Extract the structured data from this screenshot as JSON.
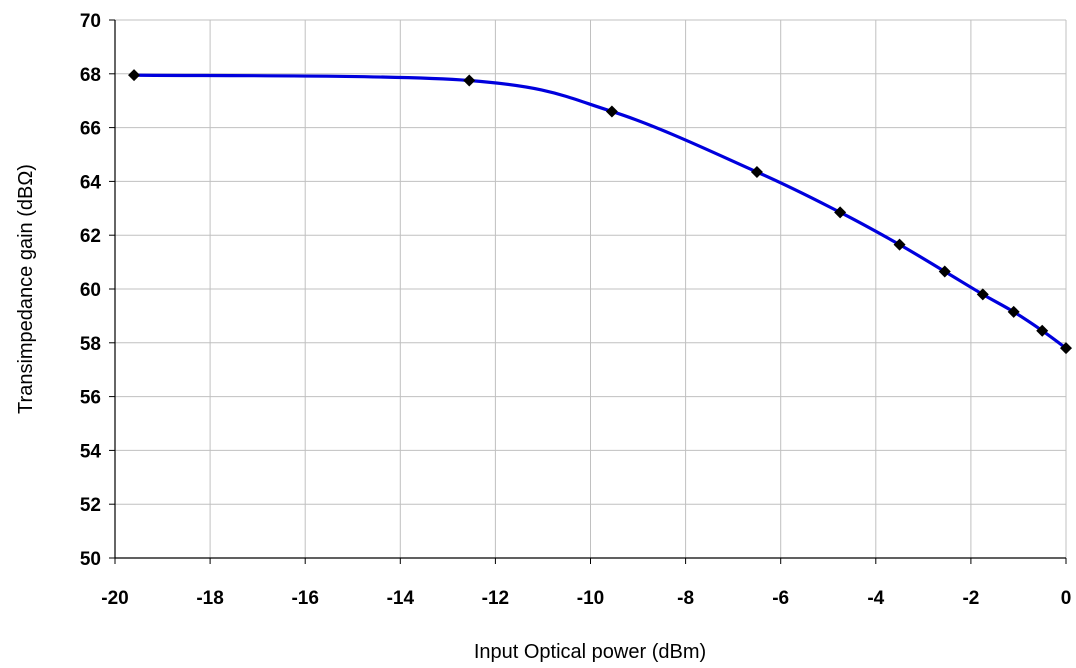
{
  "chart_data": {
    "type": "line",
    "title": "",
    "xlabel": "Input Optical power  (dBm)",
    "ylabel": "Transimpedance gain (dBΩ)",
    "xlim": [
      -20,
      0
    ],
    "ylim": [
      50,
      70
    ],
    "x_ticks": [
      -20,
      -18,
      -16,
      -14,
      -12,
      -10,
      -8,
      -6,
      -4,
      -2,
      0
    ],
    "y_ticks": [
      50,
      52,
      54,
      56,
      58,
      60,
      62,
      64,
      66,
      68,
      70
    ],
    "grid": true,
    "legend": "none",
    "series": [
      {
        "line_color": "#0000dd",
        "marker": "diamond",
        "marker_color": "#000000",
        "x": [
          -19.6,
          -12.55,
          -9.55,
          -6.5,
          -4.75,
          -3.5,
          -2.55,
          -1.75,
          -1.1,
          -0.5,
          0
        ],
        "y": [
          67.95,
          67.75,
          66.6,
          64.35,
          62.85,
          61.65,
          60.65,
          59.8,
          59.15,
          58.45,
          57.8
        ]
      }
    ]
  }
}
